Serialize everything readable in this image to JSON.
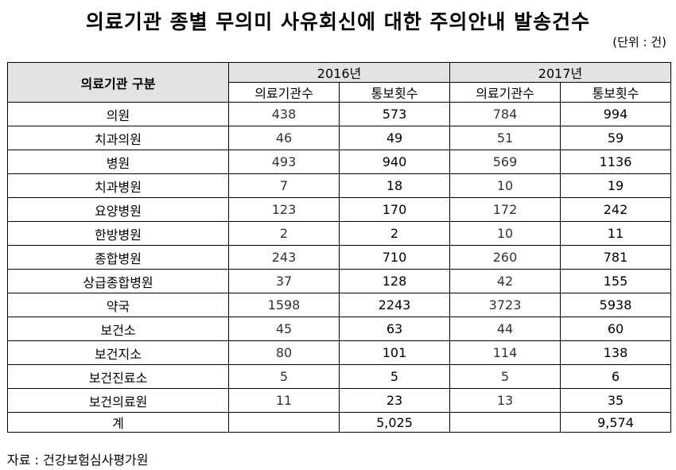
{
  "title": "의료기관 종별 무의미 사유회신에 대한 주의안내 발송건수",
  "unit": "(단위 : 건)",
  "header": {
    "category": "의료기관 구분",
    "years": [
      "2016년",
      "2017년"
    ],
    "sub": [
      "의료기관수",
      "통보횟수",
      "의료기관수",
      "통보횟수"
    ]
  },
  "rows": [
    {
      "name": "의원",
      "v": [
        "438",
        "573",
        "784",
        "994"
      ]
    },
    {
      "name": "치과의원",
      "v": [
        "46",
        "49",
        "51",
        "59"
      ]
    },
    {
      "name": "병원",
      "v": [
        "493",
        "940",
        "569",
        "1136"
      ]
    },
    {
      "name": "치과병원",
      "v": [
        "7",
        "18",
        "10",
        "19"
      ]
    },
    {
      "name": "요양병원",
      "v": [
        "123",
        "170",
        "172",
        "242"
      ]
    },
    {
      "name": "한방병원",
      "v": [
        "2",
        "2",
        "10",
        "11"
      ]
    },
    {
      "name": "종합병원",
      "v": [
        "243",
        "710",
        "260",
        "781"
      ]
    },
    {
      "name": "상급종합병원",
      "v": [
        "37",
        "128",
        "42",
        "155"
      ]
    },
    {
      "name": "약국",
      "v": [
        "1598",
        "2243",
        "3723",
        "5938"
      ]
    },
    {
      "name": "보건소",
      "v": [
        "45",
        "63",
        "44",
        "60"
      ]
    },
    {
      "name": "보건지소",
      "v": [
        "80",
        "101",
        "114",
        "138"
      ]
    },
    {
      "name": "보건진료소",
      "v": [
        "5",
        "5",
        "5",
        "6"
      ]
    },
    {
      "name": "보건의료원",
      "v": [
        "11",
        "23",
        "13",
        "35"
      ]
    }
  ],
  "total": {
    "name": "계",
    "v": [
      "",
      "5,025",
      "",
      "9,574"
    ]
  },
  "source": "자료 : 건강보험심사평가원"
}
